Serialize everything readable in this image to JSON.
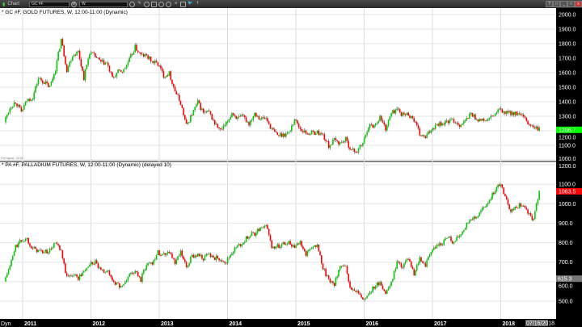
{
  "toolbar": {
    "app_label": "Chart",
    "symbol": "GC #F",
    "interval": "W",
    "window_buttons": [
      "?",
      "□",
      "_",
      "□",
      "x"
    ]
  },
  "panels": [
    {
      "title": "* GC #F, GOLD FUTURES, W, 12:00-11:00 (Dynamic)",
      "watermark": "©eSignal, 2018",
      "last_price": "1206.7",
      "last_color": "#00ff00",
      "y_ticks": [
        "2000.0",
        "1900.0",
        "1800.0",
        "1700.0",
        "1600.0",
        "1500.0",
        "1400.0",
        "1300.0",
        "1200.0",
        "1100.0",
        "1000.0"
      ]
    },
    {
      "title": "* PA #F, PALLADIUM FUTURES, W, 12:00-11:00 (Dynamic) (delayed 10)",
      "last_price": "1063.5",
      "last_color": "#ff0000",
      "marker_price": "615.3",
      "y_ticks": [
        "1200.0",
        "1100.0",
        "1000.0",
        "900.0",
        "800.0",
        "700.0",
        "600.0",
        "500.0"
      ]
    }
  ],
  "time_axis": {
    "label": "Dyn",
    "years": [
      "2011",
      "2012",
      "2013",
      "2014",
      "2015",
      "2016",
      "2017",
      "2018"
    ],
    "cursor_date": "07/16/2018"
  },
  "chart_data": [
    {
      "type": "candlestick",
      "title": "GC #F, GOLD FUTURES, W",
      "ylim": [
        1000,
        2000
      ],
      "frequency": "monthly approx (Oct 2010 - Aug 2018)",
      "up_color": "#00cc00",
      "down_color": "#ff0000",
      "closes": [
        1260,
        1360,
        1400,
        1330,
        1410,
        1430,
        1560,
        1535,
        1500,
        1625,
        1830,
        1620,
        1720,
        1745,
        1565,
        1740,
        1710,
        1670,
        1665,
        1560,
        1605,
        1615,
        1690,
        1775,
        1720,
        1715,
        1675,
        1660,
        1580,
        1595,
        1475,
        1390,
        1235,
        1315,
        1395,
        1325,
        1325,
        1250,
        1200,
        1245,
        1325,
        1285,
        1295,
        1250,
        1325,
        1285,
        1285,
        1210,
        1170,
        1175,
        1185,
        1280,
        1215,
        1185,
        1185,
        1190,
        1170,
        1095,
        1135,
        1115,
        1140,
        1065,
        1060,
        1115,
        1235,
        1235,
        1295,
        1215,
        1320,
        1350,
        1310,
        1315,
        1275,
        1175,
        1150,
        1210,
        1250,
        1250,
        1265,
        1270,
        1240,
        1265,
        1320,
        1280,
        1270,
        1275,
        1305,
        1345,
        1320,
        1325,
        1315,
        1300,
        1250,
        1225,
        1206.7
      ]
    },
    {
      "type": "candlestick",
      "title": "PA #F, PALLADIUM FUTURES, W",
      "ylim": [
        450,
        1200
      ],
      "frequency": "monthly approx (Oct 2010 - Aug 2018)",
      "up_color": "#00cc00",
      "down_color": "#ff0000",
      "closes": [
        600,
        680,
        780,
        810,
        820,
        770,
        760,
        750,
        760,
        800,
        750,
        620,
        640,
        620,
        650,
        690,
        700,
        650,
        660,
        610,
        580,
        580,
        640,
        650,
        610,
        690,
        700,
        750,
        740,
        760,
        690,
        750,
        670,
        730,
        740,
        720,
        740,
        720,
        720,
        700,
        750,
        780,
        800,
        840,
        845,
        880,
        890,
        780,
        780,
        800,
        800,
        780,
        810,
        740,
        780,
        780,
        670,
        610,
        590,
        670,
        670,
        550,
        560,
        500,
        540,
        570,
        600,
        540,
        590,
        700,
        680,
        720,
        630,
        720,
        680,
        760,
        780,
        800,
        830,
        800,
        840,
        880,
        930,
        930,
        970,
        1010,
        1060,
        1100,
        1050,
        960,
        990,
        990,
        950,
        920,
        1063.5
      ]
    }
  ]
}
